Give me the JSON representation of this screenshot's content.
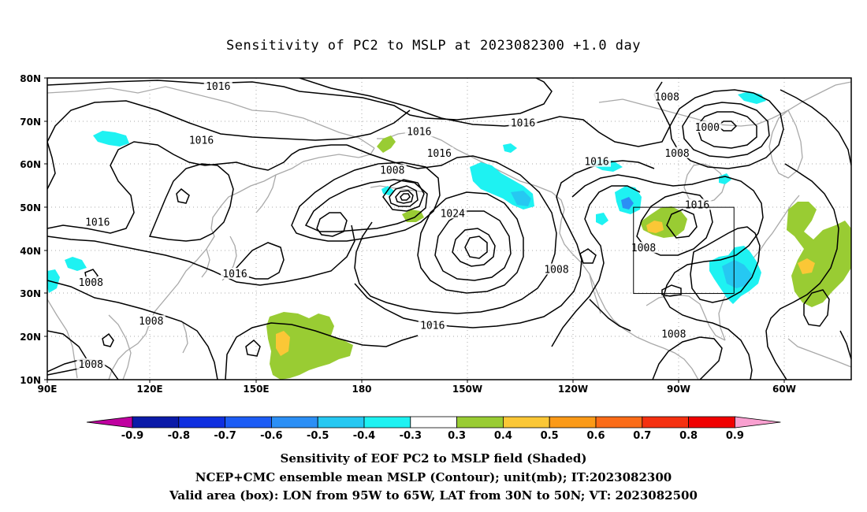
{
  "title": "Sensitivity of PC2 to MSLP at 2023082300 +1.0 day",
  "axes": {
    "lat_labels": [
      "80N",
      "70N",
      "60N",
      "50N",
      "40N",
      "30N",
      "20N",
      "10N"
    ],
    "lon_labels": [
      "90E",
      "120E",
      "150E",
      "180",
      "150W",
      "120W",
      "90W",
      "60W"
    ]
  },
  "isobar_labels": [
    {
      "text": "1016",
      "lon": 141,
      "lat": 78
    },
    {
      "text": "1016",
      "lon": 232,
      "lat": 69.5
    },
    {
      "text": "1016",
      "lon": 136,
      "lat": 65.5
    },
    {
      "text": "1016",
      "lon": 201,
      "lat": 67.5
    },
    {
      "text": "1016",
      "lon": 207,
      "lat": 62.5
    },
    {
      "text": "1016",
      "lon": 254,
      "lat": 60.5
    },
    {
      "text": "1016",
      "lon": 105,
      "lat": 46.5
    },
    {
      "text": "1016",
      "lon": 146,
      "lat": 34.5
    },
    {
      "text": "1016",
      "lon": 205,
      "lat": 22.5
    },
    {
      "text": "1016",
      "lon": 284,
      "lat": 50.5
    },
    {
      "text": "1008",
      "lon": 103,
      "lat": 32.5
    },
    {
      "text": "1008",
      "lon": 121,
      "lat": 23.5
    },
    {
      "text": "1008",
      "lon": 103,
      "lat": 13.5
    },
    {
      "text": "1008",
      "lon": 193,
      "lat": 58.5
    },
    {
      "text": "1008",
      "lon": 275,
      "lat": 75.5
    },
    {
      "text": "1008",
      "lon": 278,
      "lat": 62.5
    },
    {
      "text": "1008",
      "lon": 268,
      "lat": 40.5
    },
    {
      "text": "1008",
      "lon": 242,
      "lat": 35.5
    },
    {
      "text": "1008",
      "lon": 277,
      "lat": 20.5
    },
    {
      "text": "1000",
      "lon": 287,
      "lat": 68.5
    },
    {
      "text": "1024",
      "lon": 211,
      "lat": 48.5
    }
  ],
  "colorbar": {
    "labels": [
      "-0.9",
      "-0.8",
      "-0.7",
      "-0.6",
      "-0.5",
      "-0.4",
      "-0.3",
      "0.3",
      "0.4",
      "0.5",
      "0.6",
      "0.7",
      "0.8",
      "0.9"
    ],
    "colors": [
      "#c000a0",
      "#0a1aa8",
      "#0f2fe0",
      "#1c5cf5",
      "#2b8ff5",
      "#26c8f2",
      "#1ef2f2",
      "#ffffff",
      "#99cc33",
      "#fbc736",
      "#fb9a18",
      "#fb6c18",
      "#f53010",
      "#f00000",
      "#f9a0d0"
    ]
  },
  "box": {
    "lon_from": 265,
    "lon_to": 295,
    "lat_from": 30,
    "lat_to": 50
  },
  "captions": {
    "line1": "Sensitivity of EOF PC2 to MSLP field (Shaded)",
    "line2": "NCEP+CMC ensemble mean MSLP (Contour); unit(mb); IT:2023082300",
    "line3": "Valid area (box): LON from 95W to 65W, LAT from 30N to 50N; VT: 2023082500"
  }
}
